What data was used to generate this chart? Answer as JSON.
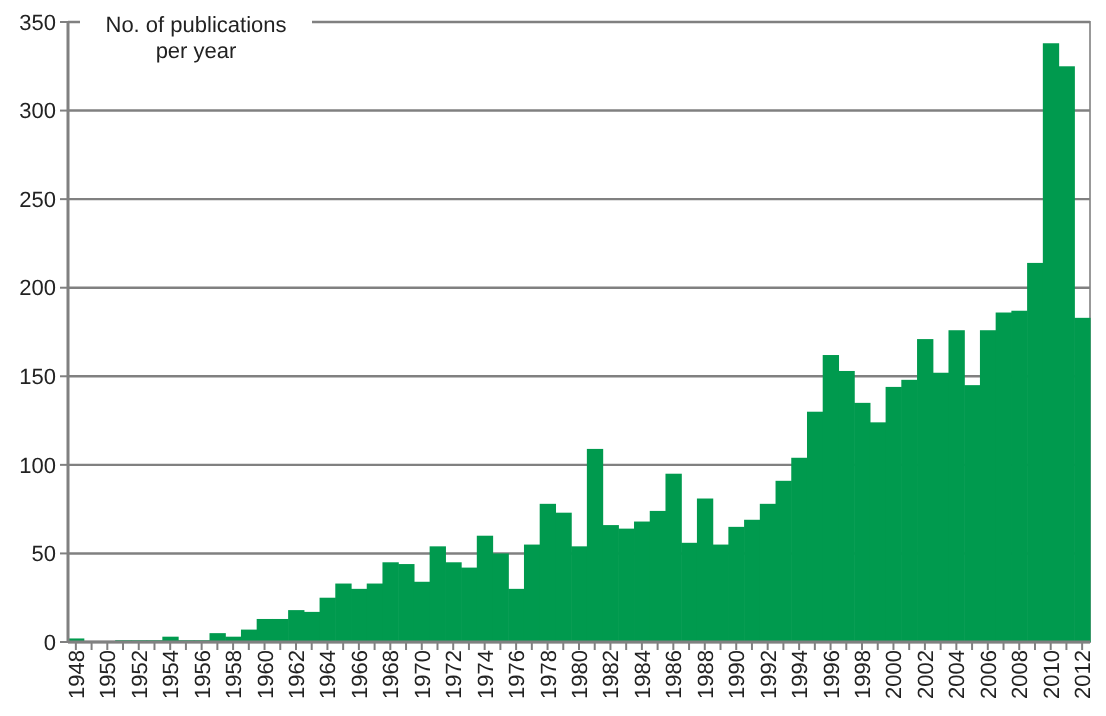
{
  "chart_data": {
    "type": "bar",
    "ylabel": "No. of publications per year",
    "categories": [
      "1948",
      null,
      "1950",
      null,
      "1952",
      null,
      "1954",
      null,
      "1956",
      null,
      "1958",
      null,
      "1960",
      null,
      "1962",
      null,
      "1964",
      null,
      "1966",
      null,
      "1968",
      null,
      "1970",
      null,
      "1972",
      null,
      "1974",
      null,
      "1976",
      null,
      "1978",
      null,
      "1980",
      null,
      "1982",
      null,
      "1984",
      null,
      "1986",
      null,
      "1988",
      null,
      "1990",
      null,
      "1992",
      null,
      "1994",
      null,
      "1996",
      null,
      "1998",
      null,
      "2000",
      null,
      "2002",
      null,
      "2004",
      null,
      "2006",
      null,
      "2008",
      null,
      "2010",
      null,
      "2012"
    ],
    "values": [
      2,
      0,
      0,
      1,
      1,
      1,
      3,
      1,
      1,
      5,
      3,
      7,
      13,
      13,
      18,
      17,
      25,
      33,
      30,
      33,
      45,
      44,
      34,
      54,
      45,
      42,
      60,
      50,
      30,
      55,
      78,
      73,
      54,
      109,
      66,
      64,
      68,
      74,
      95,
      56,
      81,
      55,
      65,
      69,
      78,
      91,
      104,
      130,
      162,
      153,
      135,
      124,
      144,
      148,
      171,
      152,
      176,
      145,
      176,
      186,
      187,
      214,
      338,
      325,
      183
    ],
    "color": "#009a4e",
    "ylim": [
      0,
      350
    ],
    "yticks": [
      0,
      50,
      100,
      150,
      200,
      250,
      300,
      350
    ],
    "grid": "y"
  }
}
